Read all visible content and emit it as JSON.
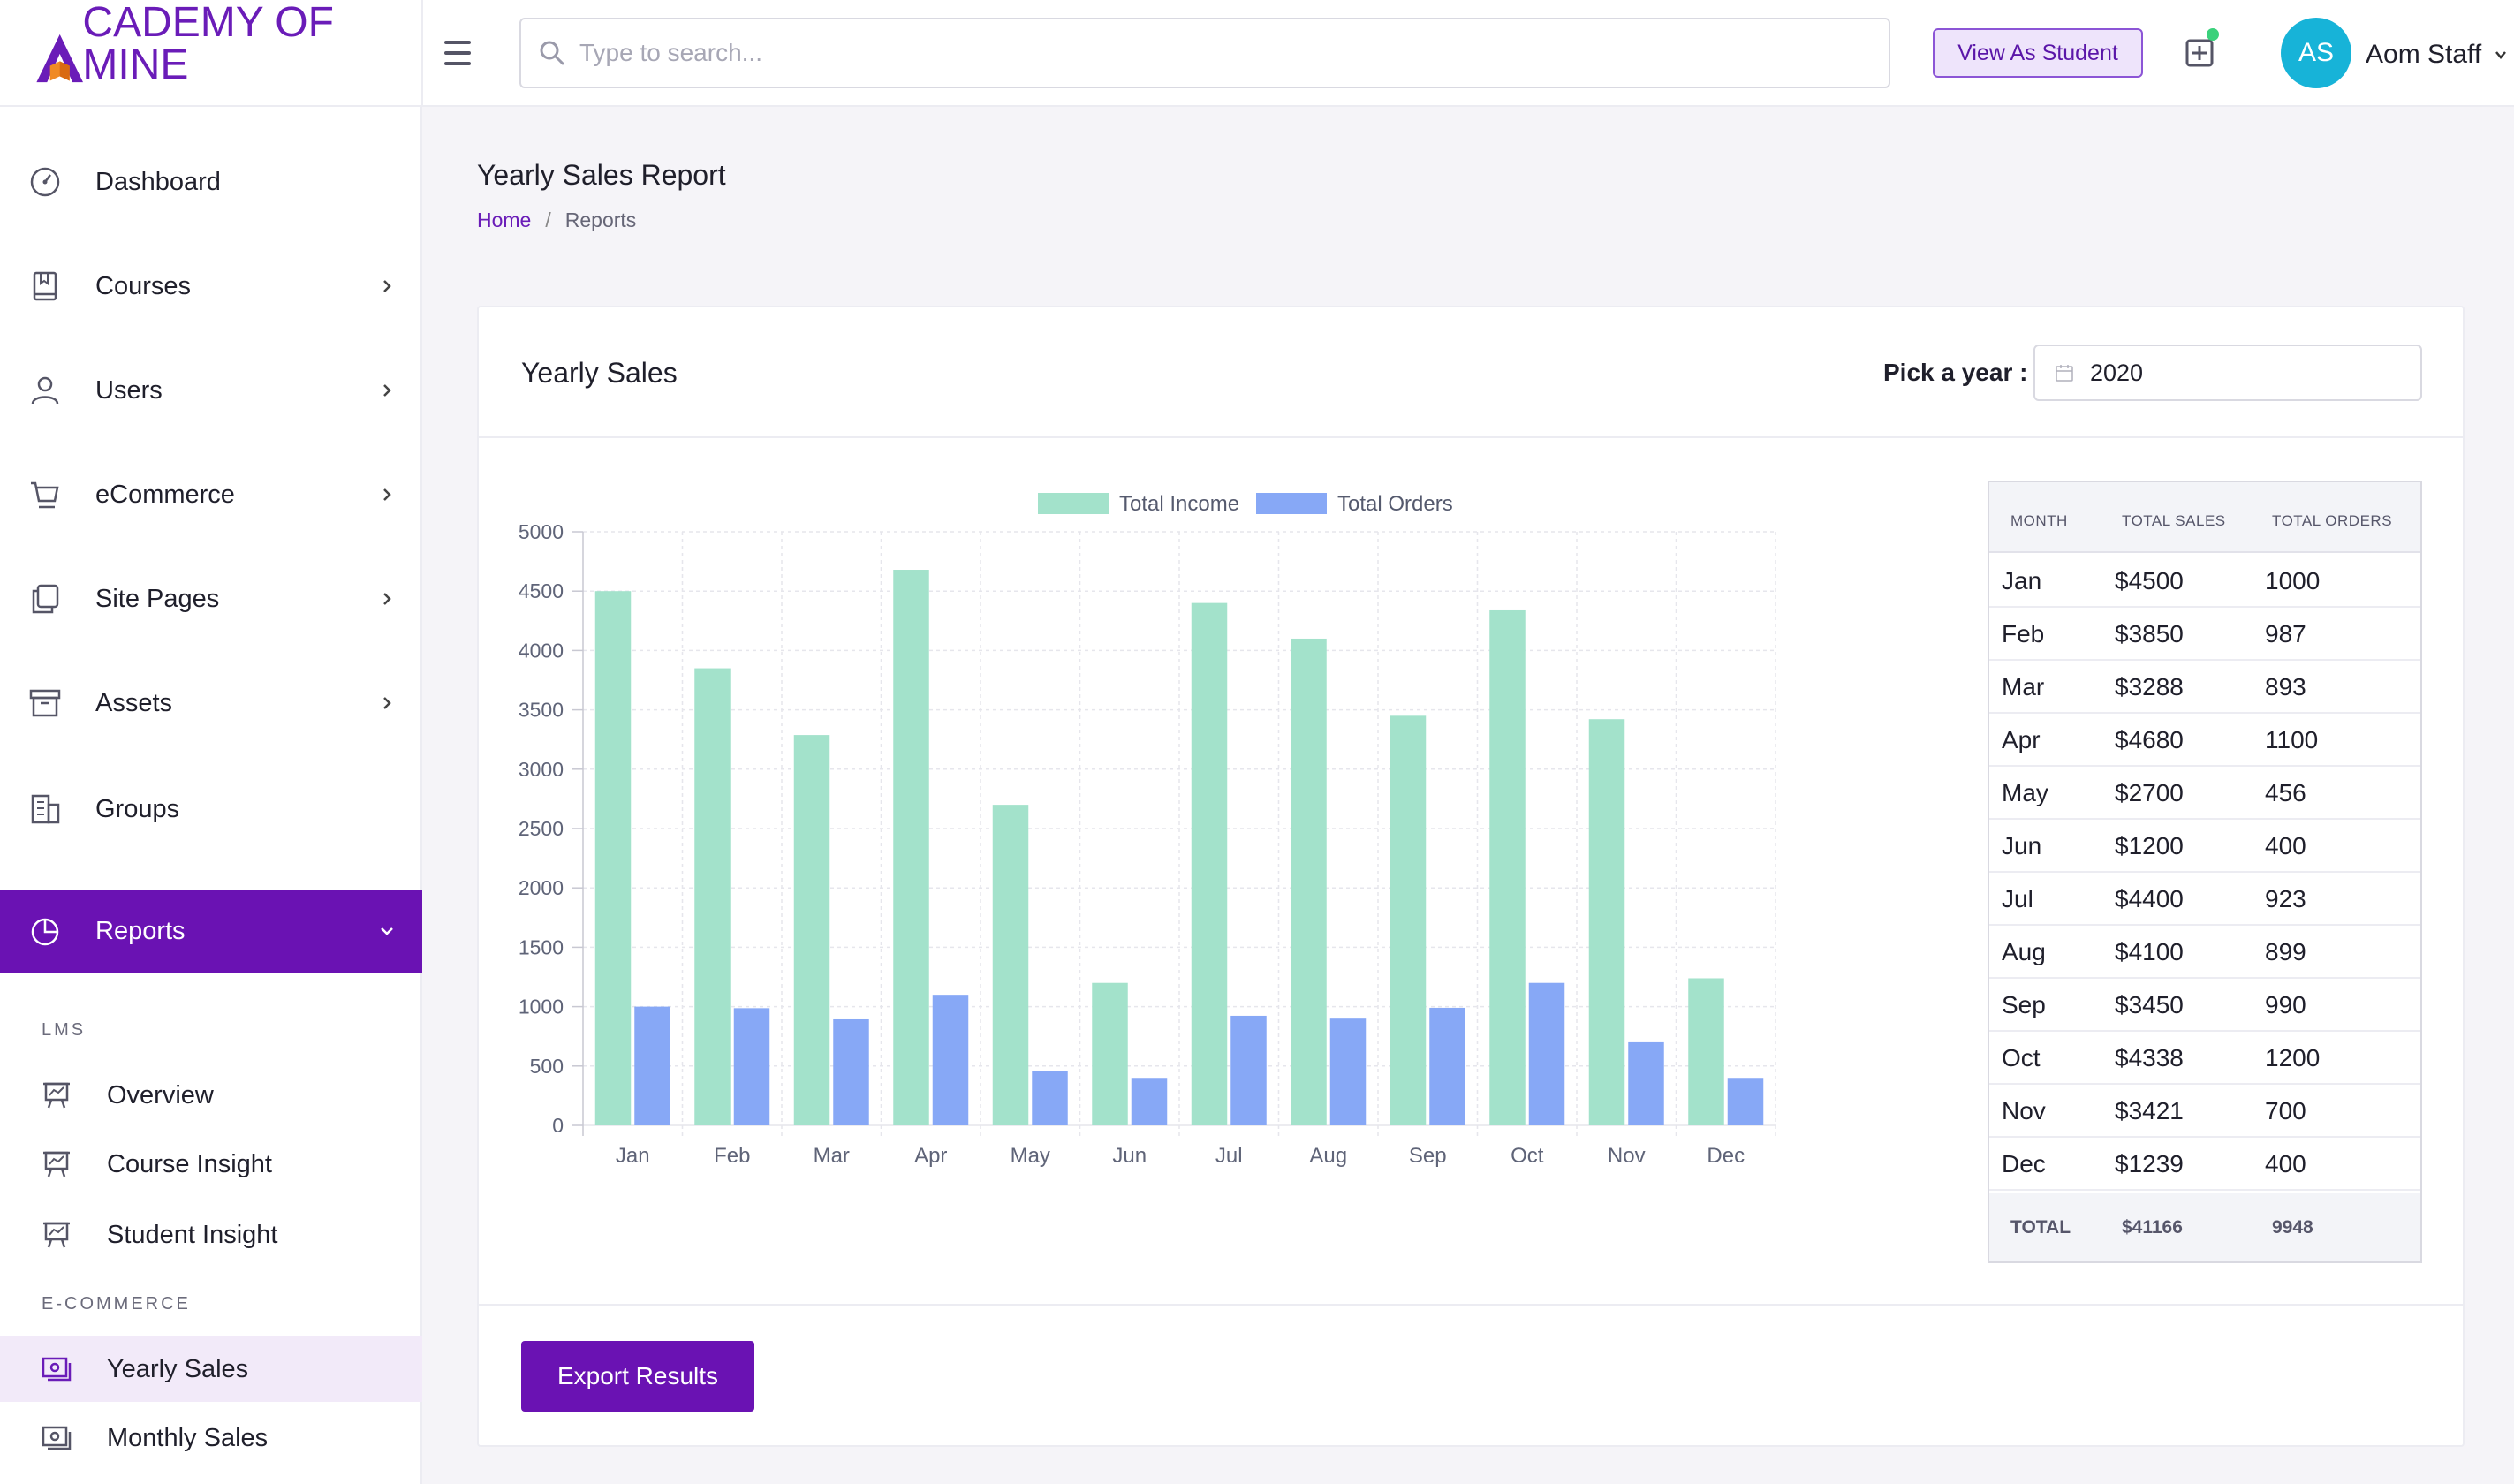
{
  "header": {
    "logo_text": "CADEMY OF MINE",
    "search_placeholder": "Type to search...",
    "view_as_student": "View As Student",
    "avatar_initials": "AS",
    "user_name": "Aom Staff"
  },
  "sidebar": {
    "items": [
      {
        "label": "Dashboard",
        "icon": "dashboard-icon"
      },
      {
        "label": "Courses",
        "icon": "book-icon"
      },
      {
        "label": "Users",
        "icon": "user-icon"
      },
      {
        "label": "eCommerce",
        "icon": "cart-icon"
      },
      {
        "label": "Site Pages",
        "icon": "pages-icon"
      },
      {
        "label": "Assets",
        "icon": "archive-icon"
      },
      {
        "label": "Groups",
        "icon": "building-icon"
      },
      {
        "label": "Reports",
        "icon": "pie-chart-icon"
      }
    ],
    "section_lms": "LMS",
    "lms_items": [
      "Overview",
      "Course Insight",
      "Student Insight"
    ],
    "section_ecommerce": "E-COMMERCE",
    "ecommerce_items": [
      "Yearly Sales",
      "Monthly Sales"
    ]
  },
  "page": {
    "title": "Yearly Sales Report",
    "breadcrumb_home": "Home",
    "breadcrumb_sep": "/",
    "breadcrumb_current": "Reports"
  },
  "card": {
    "title": "Yearly Sales",
    "pick_label": "Pick a year :",
    "year": "2020",
    "export_label": "Export Results"
  },
  "table": {
    "headers": [
      "MONTH",
      "TOTAL SALES",
      "TOTAL ORDERS"
    ],
    "rows": [
      [
        "Jan",
        "$4500",
        "1000"
      ],
      [
        "Feb",
        "$3850",
        "987"
      ],
      [
        "Mar",
        "$3288",
        "893"
      ],
      [
        "Apr",
        "$4680",
        "1100"
      ],
      [
        "May",
        "$2700",
        "456"
      ],
      [
        "Jun",
        "$1200",
        "400"
      ],
      [
        "Jul",
        "$4400",
        "923"
      ],
      [
        "Aug",
        "$4100",
        "899"
      ],
      [
        "Sep",
        "$3450",
        "990"
      ],
      [
        "Oct",
        "$4338",
        "1200"
      ],
      [
        "Nov",
        "$3421",
        "700"
      ],
      [
        "Dec",
        "$1239",
        "400"
      ]
    ],
    "footer": [
      "TOTAL",
      "$41166",
      "9948"
    ]
  },
  "chart_data": {
    "type": "bar",
    "title": "",
    "xlabel": "",
    "ylabel": "",
    "categories": [
      "Jan",
      "Feb",
      "Mar",
      "Apr",
      "May",
      "Jun",
      "Jul",
      "Aug",
      "Sep",
      "Oct",
      "Nov",
      "Dec"
    ],
    "series": [
      {
        "name": "Total Income",
        "color": "#a3e2cb",
        "values": [
          4500,
          3850,
          3288,
          4680,
          2700,
          1200,
          4400,
          4100,
          3450,
          4338,
          3421,
          1239
        ]
      },
      {
        "name": "Total Orders",
        "color": "#87a8f6",
        "values": [
          1000,
          987,
          893,
          1100,
          456,
          400,
          923,
          899,
          990,
          1200,
          700,
          400
        ]
      }
    ],
    "ylim": [
      0,
      5000
    ],
    "yticks": [
      0,
      500,
      1000,
      1500,
      2000,
      2500,
      3000,
      3500,
      4000,
      4500,
      5000
    ],
    "legend": "top-center",
    "grid": true
  },
  "colors": {
    "brand": "#6a12b3",
    "avatar": "#17b3d8",
    "online": "#3ad17b"
  }
}
